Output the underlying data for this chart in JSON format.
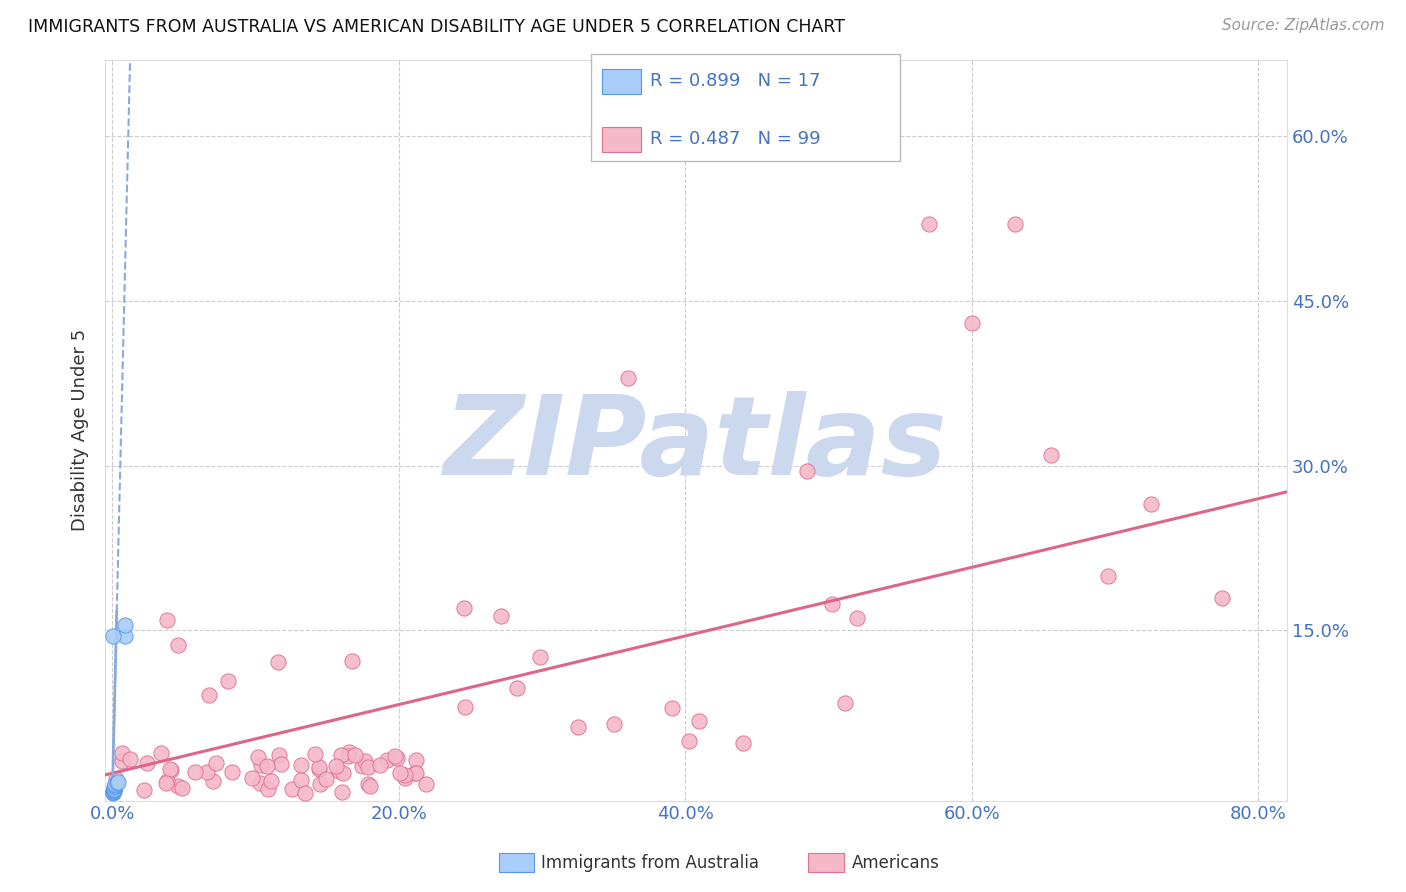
{
  "title": "IMMIGRANTS FROM AUSTRALIA VS AMERICAN DISABILITY AGE UNDER 5 CORRELATION CHART",
  "source": "Source: ZipAtlas.com",
  "ylabel": "Disability Age Under 5",
  "color_australia": "#aaccf8",
  "color_australia_edge": "#5599ee",
  "color_americans": "#f5b8c8",
  "color_americans_edge": "#e07090",
  "color_trendline_australia": "#88aadd",
  "color_trendline_americans": "#dd6688",
  "color_axis_labels": "#4472c4",
  "watermark_color": "#ccd8ee",
  "background_color": "#ffffff",
  "grid_color": "#cccccc",
  "xlim": [
    -0.005,
    0.82
  ],
  "ylim": [
    -0.005,
    0.67
  ],
  "x_ticks": [
    0.0,
    0.2,
    0.4,
    0.6,
    0.8
  ],
  "x_tick_labels": [
    "0.0%",
    "20.0%",
    "40.0%",
    "60.0%",
    "80.0%"
  ],
  "y_ticks": [
    0.15,
    0.3,
    0.45,
    0.6
  ],
  "y_tick_labels": [
    "15.0%",
    "30.0%",
    "45.0%",
    "60.0%"
  ],
  "legend_text_1": "R = 0.899   N = 17",
  "legend_text_2": "R = 0.487   N = 99",
  "watermark": "ZIPatlas",
  "bottom_legend_1": "Immigrants from Australia",
  "bottom_legend_2": "Americans"
}
